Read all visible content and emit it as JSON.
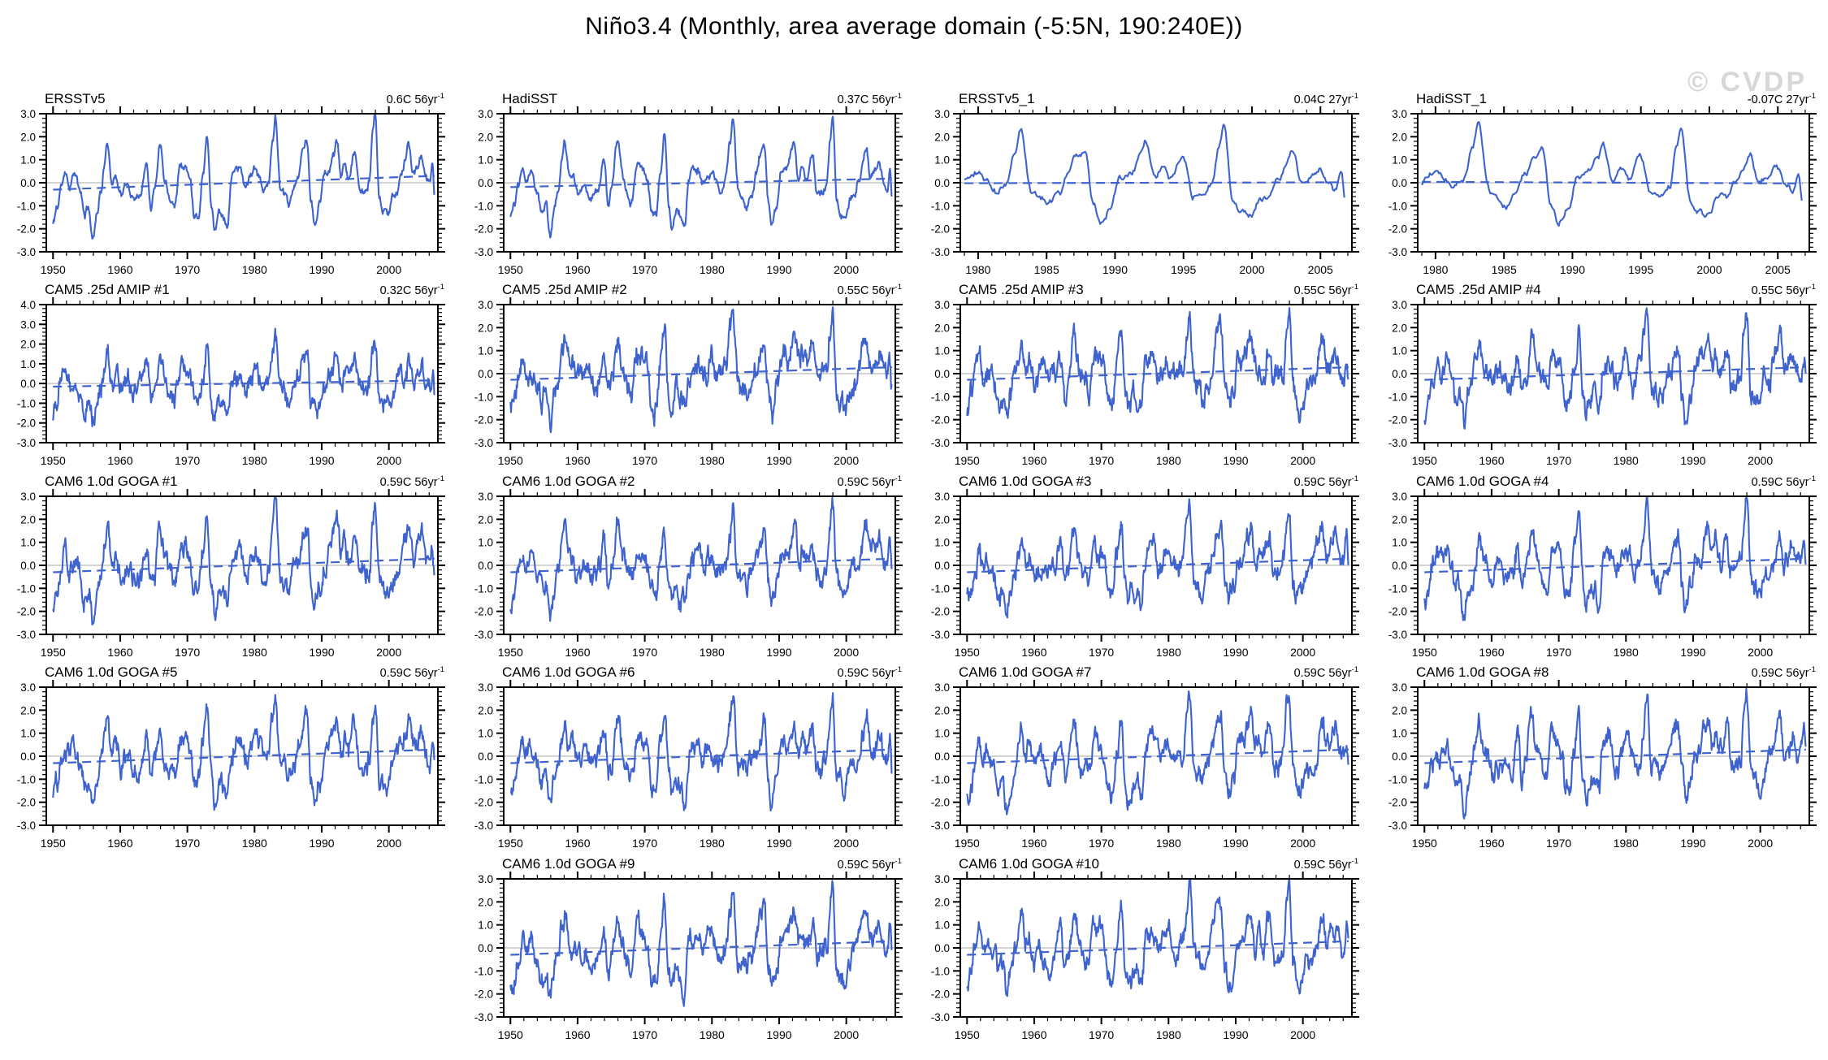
{
  "page_title": "Niño3.4 (Monthly, area average domain (-5:5N, 190:240E))",
  "watermark": "© CVDP",
  "colors": {
    "line": "#3E63CE",
    "trend_line": "#3E63CE",
    "zero_line": "#aaaaaa",
    "axis": "#000000",
    "text": "#000000",
    "watermark": "#d7d7d7",
    "background": "#ffffff"
  },
  "chart_data": {
    "type": "line",
    "title": "Niño3.4 (Monthly, area average domain (-5:5N, 190:240E))",
    "xlabel": "",
    "ylabel": "",
    "grid": "off",
    "legend": "none",
    "anchor_series": [
      [
        1950.0,
        -1.45
      ],
      [
        1950.6,
        -0.9
      ],
      [
        1951.2,
        0.1
      ],
      [
        1951.8,
        0.85
      ],
      [
        1952.4,
        0.2
      ],
      [
        1953.2,
        0.65
      ],
      [
        1954.0,
        -0.1
      ],
      [
        1954.7,
        -1.15
      ],
      [
        1955.3,
        -0.8
      ],
      [
        1955.9,
        -2.25
      ],
      [
        1956.5,
        -1.05
      ],
      [
        1957.1,
        -0.2
      ],
      [
        1957.7,
        1.1
      ],
      [
        1958.1,
        1.85
      ],
      [
        1958.8,
        0.35
      ],
      [
        1959.3,
        0.5
      ],
      [
        1960.1,
        -0.25
      ],
      [
        1961.0,
        0.05
      ],
      [
        1962.0,
        -0.45
      ],
      [
        1963.1,
        -0.25
      ],
      [
        1963.9,
        1.2
      ],
      [
        1964.6,
        -0.85
      ],
      [
        1965.1,
        -0.1
      ],
      [
        1965.95,
        1.9
      ],
      [
        1966.7,
        0.3
      ],
      [
        1967.4,
        -0.4
      ],
      [
        1968.1,
        -0.75
      ],
      [
        1968.95,
        0.9
      ],
      [
        1969.7,
        0.75
      ],
      [
        1970.4,
        0.25
      ],
      [
        1971.0,
        -1.2
      ],
      [
        1971.7,
        -1.3
      ],
      [
        1972.3,
        0.5
      ],
      [
        1972.95,
        2.15
      ],
      [
        1973.6,
        -1.0
      ],
      [
        1974.05,
        -2.0
      ],
      [
        1974.7,
        -1.2
      ],
      [
        1975.3,
        -1.35
      ],
      [
        1975.95,
        -1.8
      ],
      [
        1976.6,
        0.25
      ],
      [
        1977.2,
        0.7
      ],
      [
        1977.9,
        0.55
      ],
      [
        1978.6,
        -0.25
      ],
      [
        1979.3,
        0.25
      ],
      [
        1980.0,
        0.55
      ],
      [
        1980.6,
        0.15
      ],
      [
        1981.3,
        -0.35
      ],
      [
        1982.1,
        0.1
      ],
      [
        1982.7,
        1.7
      ],
      [
        1983.1,
        2.85
      ],
      [
        1983.9,
        -0.45
      ],
      [
        1984.6,
        -0.7
      ],
      [
        1985.1,
        -1.1
      ],
      [
        1985.9,
        -0.5
      ],
      [
        1986.6,
        0.35
      ],
      [
        1987.2,
        1.3
      ],
      [
        1987.8,
        1.7
      ],
      [
        1988.4,
        -0.9
      ],
      [
        1988.95,
        -1.95
      ],
      [
        1989.7,
        -1.1
      ],
      [
        1990.3,
        0.25
      ],
      [
        1991.1,
        0.45
      ],
      [
        1991.9,
        1.25
      ],
      [
        1992.2,
        1.8
      ],
      [
        1992.9,
        0.1
      ],
      [
        1993.5,
        0.75
      ],
      [
        1994.1,
        0.1
      ],
      [
        1994.95,
        1.2
      ],
      [
        1995.7,
        -0.65
      ],
      [
        1996.4,
        -0.7
      ],
      [
        1997.1,
        -0.2
      ],
      [
        1997.6,
        1.8
      ],
      [
        1997.95,
        2.75
      ],
      [
        1998.6,
        -0.9
      ],
      [
        1999.1,
        -1.45
      ],
      [
        1999.9,
        -1.7
      ],
      [
        2000.6,
        -0.8
      ],
      [
        2001.2,
        -0.55
      ],
      [
        2001.9,
        0.05
      ],
      [
        2002.5,
        0.8
      ],
      [
        2002.95,
        1.45
      ],
      [
        2003.6,
        0.15
      ],
      [
        2004.2,
        0.25
      ],
      [
        2004.9,
        0.8
      ],
      [
        2005.6,
        -0.1
      ],
      [
        2006.1,
        -0.4
      ],
      [
        2006.5,
        0.5
      ],
      [
        2006.8,
        -0.75
      ]
    ],
    "panels": [
      {
        "label": "ERSSTv5",
        "trend": {
          "label": "0.6C 56yr",
          "sup": "-1"
        },
        "row": 0,
        "col": 0,
        "xlim": [
          1949,
          2007.3
        ],
        "xticks": [
          1950,
          1960,
          1970,
          1980,
          1990,
          2000
        ],
        "x_minor_step": 2,
        "ylim": [
          -3,
          3
        ],
        "yticks": [
          3,
          2,
          1,
          0,
          -1,
          -2,
          -3
        ],
        "trend_line": [
          -0.3,
          0.3
        ],
        "data_range": [
          1950,
          2006.8
        ],
        "seed": 11,
        "amp": 1.0,
        "noise": 0.12
      },
      {
        "label": "HadiSST",
        "trend": {
          "label": "0.37C 56yr",
          "sup": "-1"
        },
        "row": 0,
        "col": 1,
        "xlim": [
          1949,
          2007.3
        ],
        "xticks": [
          1950,
          1960,
          1970,
          1980,
          1990,
          2000
        ],
        "x_minor_step": 2,
        "ylim": [
          -3,
          3
        ],
        "yticks": [
          3,
          2,
          1,
          0,
          -1,
          -2,
          -3
        ],
        "trend_line": [
          -0.19,
          0.18
        ],
        "data_range": [
          1950,
          2006.8
        ],
        "seed": 23,
        "amp": 0.97,
        "noise": 0.12
      },
      {
        "label": "ERSSTv5_1",
        "trend": {
          "label": "0.04C 27yr",
          "sup": "-1"
        },
        "row": 0,
        "col": 2,
        "xlim": [
          1978.7,
          2007.3
        ],
        "xticks": [
          1980,
          1985,
          1990,
          1995,
          2000,
          2005
        ],
        "x_minor_step": 1,
        "ylim": [
          -3,
          3
        ],
        "yticks": [
          3,
          2,
          1,
          0,
          -1,
          -2,
          -3
        ],
        "trend_line": [
          -0.02,
          0.02
        ],
        "data_range": [
          1979,
          2006.8
        ],
        "seed": 37,
        "amp": 0.9,
        "noise": 0.1
      },
      {
        "label": "HadiSST_1",
        "trend": {
          "label": "-0.07C 27yr",
          "sup": "-1"
        },
        "row": 0,
        "col": 3,
        "xlim": [
          1978.7,
          2007.3
        ],
        "xticks": [
          1980,
          1985,
          1990,
          1995,
          2000,
          2005
        ],
        "x_minor_step": 1,
        "ylim": [
          -3,
          3
        ],
        "yticks": [
          3,
          2,
          1,
          0,
          -1,
          -2,
          -3
        ],
        "trend_line": [
          0.04,
          -0.03
        ],
        "data_range": [
          1979,
          2006.8
        ],
        "seed": 41,
        "amp": 0.9,
        "noise": 0.1
      },
      {
        "label": "CAM5 .25d AMIP #1",
        "trend": {
          "label": "0.32C 56yr",
          "sup": "-1"
        },
        "row": 1,
        "col": 0,
        "xlim": [
          1949,
          2007.3
        ],
        "xticks": [
          1950,
          1960,
          1970,
          1980,
          1990,
          2000
        ],
        "x_minor_step": 2,
        "ylim": [
          -3,
          4
        ],
        "yticks": [
          4,
          3,
          2,
          1,
          0,
          -1,
          -2,
          -3
        ],
        "trend_line": [
          -0.16,
          0.16
        ],
        "data_range": [
          1950,
          2006.8
        ],
        "seed": 53,
        "amp": 0.85,
        "noise": 0.36
      },
      {
        "label": "CAM5 .25d AMIP #2",
        "trend": {
          "label": "0.55C 56yr",
          "sup": "-1"
        },
        "row": 1,
        "col": 1,
        "xlim": [
          1949,
          2007.3
        ],
        "xticks": [
          1950,
          1960,
          1970,
          1980,
          1990,
          2000
        ],
        "x_minor_step": 2,
        "ylim": [
          -3,
          3
        ],
        "yticks": [
          3,
          2,
          1,
          0,
          -1,
          -2,
          -3
        ],
        "trend_line": [
          -0.27,
          0.28
        ],
        "data_range": [
          1950,
          2006.8
        ],
        "seed": 61,
        "amp": 0.9,
        "noise": 0.36
      },
      {
        "label": "CAM5 .25d AMIP #3",
        "trend": {
          "label": "0.55C 56yr",
          "sup": "-1"
        },
        "row": 1,
        "col": 2,
        "xlim": [
          1949,
          2007.3
        ],
        "xticks": [
          1950,
          1960,
          1970,
          1980,
          1990,
          2000
        ],
        "x_minor_step": 2,
        "ylim": [
          -3,
          3
        ],
        "yticks": [
          3,
          2,
          1,
          0,
          -1,
          -2,
          -3
        ],
        "trend_line": [
          -0.27,
          0.28
        ],
        "data_range": [
          1950,
          2006.8
        ],
        "seed": 67,
        "amp": 0.9,
        "noise": 0.36
      },
      {
        "label": "CAM5 .25d AMIP #4",
        "trend": {
          "label": "0.55C 56yr",
          "sup": "-1"
        },
        "row": 1,
        "col": 3,
        "xlim": [
          1949,
          2007.3
        ],
        "xticks": [
          1950,
          1960,
          1970,
          1980,
          1990,
          2000
        ],
        "x_minor_step": 2,
        "ylim": [
          -3,
          3
        ],
        "yticks": [
          3,
          2,
          1,
          0,
          -1,
          -2,
          -3
        ],
        "trend_line": [
          -0.27,
          0.28
        ],
        "data_range": [
          1950,
          2006.8
        ],
        "seed": 71,
        "amp": 0.9,
        "noise": 0.36
      },
      {
        "label": "CAM6 1.0d GOGA #1",
        "trend": {
          "label": "0.59C 56yr",
          "sup": "-1"
        },
        "row": 2,
        "col": 0,
        "xlim": [
          1949,
          2007.3
        ],
        "xticks": [
          1950,
          1960,
          1970,
          1980,
          1990,
          2000
        ],
        "x_minor_step": 2,
        "ylim": [
          -3,
          3
        ],
        "yticks": [
          3,
          2,
          1,
          0,
          -1,
          -2,
          -3
        ],
        "trend_line": [
          -0.3,
          0.29
        ],
        "data_range": [
          1950,
          2006.8
        ],
        "seed": 81,
        "amp": 0.92,
        "noise": 0.33
      },
      {
        "label": "CAM6 1.0d GOGA #2",
        "trend": {
          "label": "0.59C 56yr",
          "sup": "-1"
        },
        "row": 2,
        "col": 1,
        "xlim": [
          1949,
          2007.3
        ],
        "xticks": [
          1950,
          1960,
          1970,
          1980,
          1990,
          2000
        ],
        "x_minor_step": 2,
        "ylim": [
          -3,
          3
        ],
        "yticks": [
          3,
          2,
          1,
          0,
          -1,
          -2,
          -3
        ],
        "trend_line": [
          -0.3,
          0.29
        ],
        "data_range": [
          1950,
          2006.8
        ],
        "seed": 82,
        "amp": 0.92,
        "noise": 0.33
      },
      {
        "label": "CAM6 1.0d GOGA #3",
        "trend": {
          "label": "0.59C 56yr",
          "sup": "-1"
        },
        "row": 2,
        "col": 2,
        "xlim": [
          1949,
          2007.3
        ],
        "xticks": [
          1950,
          1960,
          1970,
          1980,
          1990,
          2000
        ],
        "x_minor_step": 2,
        "ylim": [
          -3,
          3
        ],
        "yticks": [
          3,
          2,
          1,
          0,
          -1,
          -2,
          -3
        ],
        "trend_line": [
          -0.3,
          0.29
        ],
        "data_range": [
          1950,
          2006.8
        ],
        "seed": 83,
        "amp": 0.92,
        "noise": 0.33
      },
      {
        "label": "CAM6 1.0d GOGA #4",
        "trend": {
          "label": "0.59C 56yr",
          "sup": "-1"
        },
        "row": 2,
        "col": 3,
        "xlim": [
          1949,
          2007.3
        ],
        "xticks": [
          1950,
          1960,
          1970,
          1980,
          1990,
          2000
        ],
        "x_minor_step": 2,
        "ylim": [
          -3,
          3
        ],
        "yticks": [
          3,
          2,
          1,
          0,
          -1,
          -2,
          -3
        ],
        "trend_line": [
          -0.3,
          0.29
        ],
        "data_range": [
          1950,
          2006.8
        ],
        "seed": 84,
        "amp": 0.92,
        "noise": 0.33
      },
      {
        "label": "CAM6 1.0d GOGA #5",
        "trend": {
          "label": "0.59C 56yr",
          "sup": "-1"
        },
        "row": 3,
        "col": 0,
        "xlim": [
          1949,
          2007.3
        ],
        "xticks": [
          1950,
          1960,
          1970,
          1980,
          1990,
          2000
        ],
        "x_minor_step": 2,
        "ylim": [
          -3,
          3
        ],
        "yticks": [
          3,
          2,
          1,
          0,
          -1,
          -2,
          -3
        ],
        "trend_line": [
          -0.3,
          0.29
        ],
        "data_range": [
          1950,
          2006.8
        ],
        "seed": 85,
        "amp": 0.92,
        "noise": 0.33
      },
      {
        "label": "CAM6 1.0d GOGA #6",
        "trend": {
          "label": "0.59C 56yr",
          "sup": "-1"
        },
        "row": 3,
        "col": 1,
        "xlim": [
          1949,
          2007.3
        ],
        "xticks": [
          1950,
          1960,
          1970,
          1980,
          1990,
          2000
        ],
        "x_minor_step": 2,
        "ylim": [
          -3,
          3
        ],
        "yticks": [
          3,
          2,
          1,
          0,
          -1,
          -2,
          -3
        ],
        "trend_line": [
          -0.3,
          0.29
        ],
        "data_range": [
          1950,
          2006.8
        ],
        "seed": 86,
        "amp": 0.92,
        "noise": 0.33
      },
      {
        "label": "CAM6 1.0d GOGA #7",
        "trend": {
          "label": "0.59C 56yr",
          "sup": "-1"
        },
        "row": 3,
        "col": 2,
        "xlim": [
          1949,
          2007.3
        ],
        "xticks": [
          1950,
          1960,
          1970,
          1980,
          1990,
          2000
        ],
        "x_minor_step": 2,
        "ylim": [
          -3,
          3
        ],
        "yticks": [
          3,
          2,
          1,
          0,
          -1,
          -2,
          -3
        ],
        "trend_line": [
          -0.3,
          0.29
        ],
        "data_range": [
          1950,
          2006.8
        ],
        "seed": 87,
        "amp": 0.92,
        "noise": 0.33
      },
      {
        "label": "CAM6 1.0d GOGA #8",
        "trend": {
          "label": "0.59C 56yr",
          "sup": "-1"
        },
        "row": 3,
        "col": 3,
        "xlim": [
          1949,
          2007.3
        ],
        "xticks": [
          1950,
          1960,
          1970,
          1980,
          1990,
          2000
        ],
        "x_minor_step": 2,
        "ylim": [
          -3,
          3
        ],
        "yticks": [
          3,
          2,
          1,
          0,
          -1,
          -2,
          -3
        ],
        "trend_line": [
          -0.3,
          0.29
        ],
        "data_range": [
          1950,
          2006.8
        ],
        "seed": 88,
        "amp": 0.92,
        "noise": 0.33
      },
      {
        "label": "CAM6 1.0d GOGA #9",
        "trend": {
          "label": "0.59C 56yr",
          "sup": "-1"
        },
        "row": 4,
        "col": 1,
        "xlim": [
          1949,
          2007.3
        ],
        "xticks": [
          1950,
          1960,
          1970,
          1980,
          1990,
          2000
        ],
        "x_minor_step": 2,
        "ylim": [
          -3,
          3
        ],
        "yticks": [
          3,
          2,
          1,
          0,
          -1,
          -2,
          -3
        ],
        "trend_line": [
          -0.3,
          0.29
        ],
        "data_range": [
          1950,
          2006.8
        ],
        "seed": 89,
        "amp": 0.92,
        "noise": 0.33
      },
      {
        "label": "CAM6 1.0d GOGA #10",
        "trend": {
          "label": "0.59C 56yr",
          "sup": "-1"
        },
        "row": 4,
        "col": 2,
        "xlim": [
          1949,
          2007.3
        ],
        "xticks": [
          1950,
          1960,
          1970,
          1980,
          1990,
          2000
        ],
        "x_minor_step": 2,
        "ylim": [
          -3,
          3
        ],
        "yticks": [
          3,
          2,
          1,
          0,
          -1,
          -2,
          -3
        ],
        "trend_line": [
          -0.3,
          0.29
        ],
        "data_range": [
          1950,
          2006.8
        ],
        "seed": 90,
        "amp": 0.92,
        "noise": 0.33
      }
    ]
  }
}
